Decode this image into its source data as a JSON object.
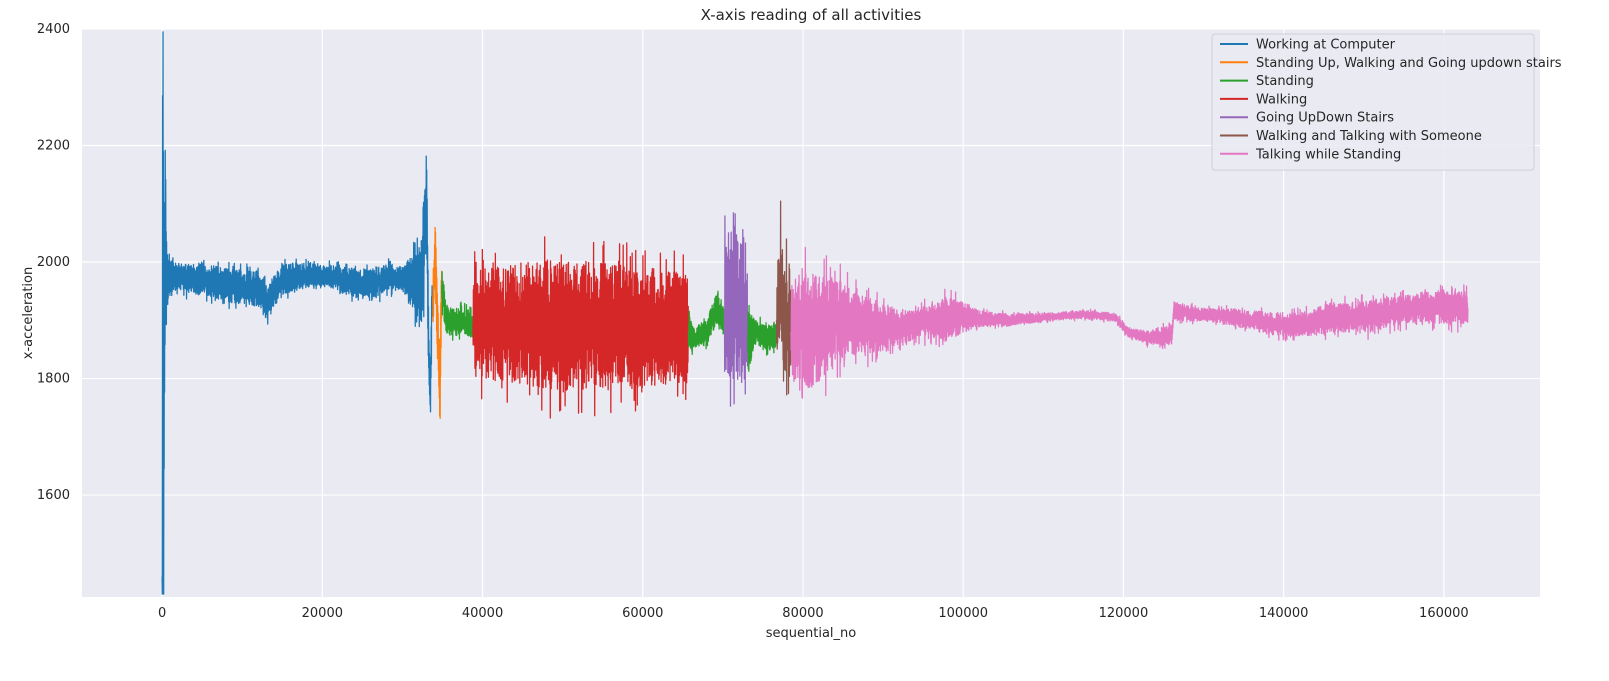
{
  "chart_data": {
    "type": "line",
    "title": "X-axis reading of all activities",
    "xlabel": "sequential_no",
    "ylabel": "x-acceleration",
    "xlim": [
      -10000,
      172000
    ],
    "ylim": [
      1425,
      2400
    ],
    "xticks": [
      0,
      20000,
      40000,
      60000,
      80000,
      100000,
      120000,
      140000,
      160000
    ],
    "yticks": [
      1600,
      1800,
      2000,
      2200,
      2400
    ],
    "grid": true,
    "legend_position": "top-right",
    "background_color": "#eaeaf2",
    "grid_color": "#ffffff",
    "series": [
      {
        "name": "Working at Computer",
        "color": "#1f77b4",
        "x_range": [
          0,
          33700
        ],
        "anchors": [
          [
            0,
            1460
          ],
          [
            100,
            2355
          ],
          [
            200,
            1680
          ],
          [
            400,
            2020
          ],
          [
            600,
            1965
          ],
          [
            1000,
            1975
          ],
          [
            3000,
            1972
          ],
          [
            6000,
            1968
          ],
          [
            9000,
            1958
          ],
          [
            12000,
            1955
          ],
          [
            13000,
            1930
          ],
          [
            15000,
            1970
          ],
          [
            18000,
            1978
          ],
          [
            21000,
            1975
          ],
          [
            24000,
            1965
          ],
          [
            26000,
            1960
          ],
          [
            28000,
            1975
          ],
          [
            30000,
            1970
          ],
          [
            32500,
            1965
          ],
          [
            33000,
            2110
          ],
          [
            33300,
            1830
          ],
          [
            33500,
            1760
          ],
          [
            33700,
            1960
          ]
        ],
        "envelope": [
          [
            0,
            700
          ],
          [
            600,
            60
          ],
          [
            2000,
            35
          ],
          [
            12000,
            45
          ],
          [
            16000,
            35
          ],
          [
            20000,
            25
          ],
          [
            26000,
            40
          ],
          [
            30000,
            30
          ],
          [
            33000,
            120
          ],
          [
            33700,
            80
          ]
        ]
      },
      {
        "name": "Standing Up, Walking and Going updown stairs",
        "color": "#ff7f0e",
        "x_range": [
          33800,
          34900
        ],
        "anchors": [
          [
            33800,
            1940
          ],
          [
            34100,
            2010
          ],
          [
            34400,
            1880
          ],
          [
            34700,
            1790
          ],
          [
            34900,
            1985
          ]
        ],
        "envelope": [
          [
            33800,
            80
          ],
          [
            34900,
            80
          ]
        ]
      },
      {
        "name": "Standing",
        "color": "#2ca02c",
        "x_range": [
          34900,
          38800
        ],
        "anchors": [
          [
            34900,
            1960
          ],
          [
            35500,
            1900
          ],
          [
            36500,
            1895
          ],
          [
            37500,
            1900
          ],
          [
            38800,
            1890
          ]
        ],
        "envelope": [
          [
            34900,
            50
          ],
          [
            35500,
            35
          ],
          [
            38800,
            30
          ]
        ]
      },
      {
        "name": "Walking",
        "color": "#d62728",
        "x_range": [
          38800,
          65700
        ],
        "anchors": [
          [
            38800,
            1895
          ],
          [
            65700,
            1885
          ]
        ],
        "envelope": [
          [
            38800,
            120
          ],
          [
            40000,
            135
          ],
          [
            48000,
            160
          ],
          [
            56000,
            155
          ],
          [
            65700,
            135
          ]
        ]
      },
      {
        "name": "Standing",
        "color": "#2ca02c",
        "x_range": [
          65700,
          70200
        ],
        "anchors": [
          [
            65700,
            1880
          ],
          [
            66500,
            1870
          ],
          [
            68000,
            1880
          ],
          [
            69200,
            1920
          ],
          [
            70200,
            1900
          ]
        ],
        "envelope": [
          [
            65700,
            60
          ],
          [
            66500,
            25
          ],
          [
            68500,
            35
          ],
          [
            70200,
            40
          ]
        ]
      },
      {
        "name": "Going UpDown Stairs",
        "color": "#9467bd",
        "x_range": [
          70200,
          73100
        ],
        "anchors": [
          [
            70200,
            1920
          ],
          [
            71400,
            1940
          ],
          [
            72500,
            1910
          ],
          [
            73100,
            1890
          ]
        ],
        "envelope": [
          [
            70200,
            160
          ],
          [
            71300,
            220
          ],
          [
            72400,
            180
          ],
          [
            73100,
            120
          ]
        ]
      },
      {
        "name": "Standing",
        "color": "#2ca02c",
        "x_range": [
          73100,
          76700
        ],
        "anchors": [
          [
            73100,
            1870
          ],
          [
            74000,
            1880
          ],
          [
            75500,
            1870
          ],
          [
            76700,
            1875
          ]
        ],
        "envelope": [
          [
            73100,
            90
          ],
          [
            74000,
            30
          ],
          [
            76700,
            30
          ]
        ]
      },
      {
        "name": "Walking and Talking with Someone",
        "color": "#8c564b",
        "x_range": [
          76700,
          78500
        ],
        "anchors": [
          [
            76700,
            1900
          ],
          [
            77300,
            1960
          ],
          [
            77900,
            1880
          ],
          [
            78500,
            1900
          ]
        ],
        "envelope": [
          [
            76700,
            120
          ],
          [
            77400,
            170
          ],
          [
            78500,
            150
          ]
        ]
      },
      {
        "name": "Talking while Standing",
        "color": "#e377c2",
        "x_range": [
          78500,
          163000
        ],
        "anchors": [
          [
            78500,
            1880
          ],
          [
            80000,
            1890
          ],
          [
            81000,
            1880
          ],
          [
            84000,
            1900
          ],
          [
            88000,
            1890
          ],
          [
            92000,
            1885
          ],
          [
            96000,
            1900
          ],
          [
            100000,
            1905
          ],
          [
            105000,
            1900
          ],
          [
            110000,
            1905
          ],
          [
            115000,
            1910
          ],
          [
            119000,
            1905
          ],
          [
            120500,
            1880
          ],
          [
            123000,
            1870
          ],
          [
            126000,
            1875
          ],
          [
            126300,
            1915
          ],
          [
            130000,
            1910
          ],
          [
            134000,
            1905
          ],
          [
            138000,
            1895
          ],
          [
            142000,
            1890
          ],
          [
            146000,
            1905
          ],
          [
            150000,
            1905
          ],
          [
            154000,
            1915
          ],
          [
            158000,
            1925
          ],
          [
            163000,
            1920
          ]
        ],
        "envelope": [
          [
            78500,
            120
          ],
          [
            80500,
            150
          ],
          [
            86000,
            85
          ],
          [
            94000,
            35
          ],
          [
            98000,
            55
          ],
          [
            102000,
            20
          ],
          [
            110000,
            10
          ],
          [
            118000,
            10
          ],
          [
            121000,
            12
          ],
          [
            126000,
            25
          ],
          [
            130000,
            15
          ],
          [
            140000,
            30
          ],
          [
            150000,
            40
          ],
          [
            156000,
            35
          ],
          [
            160000,
            45
          ],
          [
            163000,
            40
          ]
        ]
      }
    ],
    "legend": [
      {
        "label": "Working at Computer",
        "color": "#1f77b4"
      },
      {
        "label": "Standing Up, Walking and Going updown stairs",
        "color": "#ff7f0e"
      },
      {
        "label": "Standing",
        "color": "#2ca02c"
      },
      {
        "label": "Walking",
        "color": "#d62728"
      },
      {
        "label": "Going UpDown Stairs",
        "color": "#9467bd"
      },
      {
        "label": "Walking and Talking with Someone",
        "color": "#8c564b"
      },
      {
        "label": "Talking while Standing",
        "color": "#e377c2"
      }
    ]
  }
}
